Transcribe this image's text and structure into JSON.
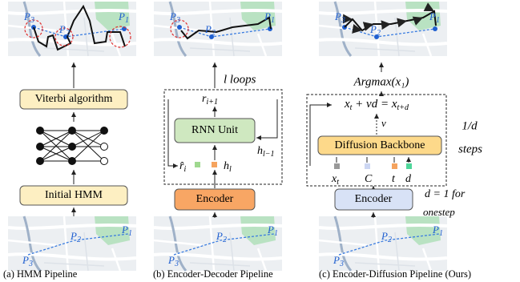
{
  "panels": [
    {
      "caption": "(a) HMM Pipeline",
      "top_points": [
        [
          "P",
          "3"
        ],
        [
          "P",
          "2"
        ],
        [
          "P",
          "1"
        ]
      ],
      "stages": [
        "Viterbi algorithm",
        "Initial HMM"
      ],
      "bottom_points": [
        [
          "P",
          "3"
        ],
        [
          "P",
          "2"
        ],
        [
          "P",
          "1"
        ]
      ]
    },
    {
      "caption": "(b) Encoder-Decoder Pipeline",
      "top_points": [
        [
          "P",
          "3"
        ],
        [
          "P",
          "2"
        ],
        [
          "P",
          "1"
        ]
      ],
      "loop_label": "l loops",
      "state_out": [
        "r",
        "i+1"
      ],
      "unit": "RNN Unit",
      "hidden_in": [
        "h",
        "l−1"
      ],
      "prediction": [
        "r̂",
        "i"
      ],
      "hidden": [
        "h",
        "l"
      ],
      "encoder": "Encoder",
      "bottom_points": [
        [
          "P",
          "3"
        ],
        [
          "P",
          "2"
        ],
        [
          "P",
          "1"
        ]
      ]
    },
    {
      "caption": "(c) Encoder-Diffusion Pipeline (Ours)",
      "top_points": [
        [
          "P",
          "3"
        ],
        [
          "P",
          "2"
        ],
        [
          "P",
          "1"
        ]
      ],
      "output": "Argmax(x₁)",
      "update": [
        "x",
        "t",
        " + vd = x",
        "t+d"
      ],
      "velocity": "v",
      "backbone": "Diffusion Backbone",
      "inputs": [
        [
          "x",
          "t"
        ],
        [
          "C"
        ],
        [
          "t"
        ],
        [
          "d"
        ]
      ],
      "step_fraction": "1/d",
      "step_word": "steps",
      "encoder": "Encoder",
      "onestep_line1": "d = 1 for",
      "onestep_line2": "onestep",
      "bottom_points": [
        [
          "P",
          "3"
        ],
        [
          "P",
          "2"
        ],
        [
          "P",
          "1"
        ]
      ]
    }
  ]
}
